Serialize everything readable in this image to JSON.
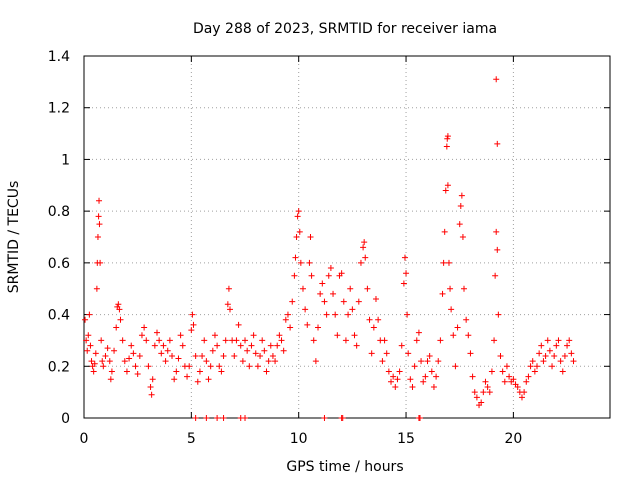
{
  "chart_data": {
    "type": "scatter",
    "title": "Day 288 of 2023, SRMTID for receiver iama",
    "xlabel": "GPS time / hours",
    "ylabel": "SRMTID / TECUs",
    "xlim": [
      0,
      24.5
    ],
    "ylim": [
      0,
      1.4
    ],
    "xticks": [
      0,
      5,
      10,
      15,
      20
    ],
    "xtick_labels": [
      "0",
      "5",
      "10",
      "15",
      "20"
    ],
    "yticks": [
      0,
      0.2,
      0.4,
      0.6,
      0.8,
      1,
      1.2,
      1.4
    ],
    "ytick_labels": [
      "0",
      "0.2",
      "0.4",
      "0.6",
      "0.8",
      "1",
      "1.2",
      "1.4"
    ],
    "grid": true,
    "marker": "+",
    "color": "#ff0000",
    "series": [
      {
        "name": "SRMTID",
        "points": [
          [
            0.05,
            0.38
          ],
          [
            0.1,
            0.3
          ],
          [
            0.15,
            0.26
          ],
          [
            0.2,
            0.32
          ],
          [
            0.25,
            0.4
          ],
          [
            0.3,
            0.28
          ],
          [
            0.35,
            0.22
          ],
          [
            0.4,
            0.2
          ],
          [
            0.45,
            0.18
          ],
          [
            0.5,
            0.21
          ],
          [
            0.55,
            0.25
          ],
          [
            0.6,
            0.5
          ],
          [
            0.62,
            0.6
          ],
          [
            0.65,
            0.7
          ],
          [
            0.68,
            0.78
          ],
          [
            0.7,
            0.84
          ],
          [
            0.72,
            0.75
          ],
          [
            0.75,
            0.6
          ],
          [
            0.8,
            0.3
          ],
          [
            0.85,
            0.22
          ],
          [
            0.9,
            0.2
          ],
          [
            1.0,
            0.24
          ],
          [
            1.1,
            0.27
          ],
          [
            1.2,
            0.22
          ],
          [
            1.25,
            0.15
          ],
          [
            1.3,
            0.18
          ],
          [
            1.4,
            0.26
          ],
          [
            1.5,
            0.35
          ],
          [
            1.55,
            0.43
          ],
          [
            1.6,
            0.44
          ],
          [
            1.65,
            0.42
          ],
          [
            1.7,
            0.38
          ],
          [
            1.8,
            0.3
          ],
          [
            1.9,
            0.22
          ],
          [
            2.0,
            0.18
          ],
          [
            2.1,
            0.23
          ],
          [
            2.2,
            0.28
          ],
          [
            2.3,
            0.25
          ],
          [
            2.4,
            0.2
          ],
          [
            2.5,
            0.17
          ],
          [
            2.6,
            0.24
          ],
          [
            2.7,
            0.32
          ],
          [
            2.8,
            0.35
          ],
          [
            2.9,
            0.3
          ],
          [
            3.0,
            0.2
          ],
          [
            3.1,
            0.12
          ],
          [
            3.15,
            0.09
          ],
          [
            3.2,
            0.15
          ],
          [
            3.3,
            0.28
          ],
          [
            3.4,
            0.33
          ],
          [
            3.5,
            0.3
          ],
          [
            3.6,
            0.25
          ],
          [
            3.7,
            0.28
          ],
          [
            3.8,
            0.22
          ],
          [
            3.9,
            0.26
          ],
          [
            4.0,
            0.3
          ],
          [
            4.1,
            0.24
          ],
          [
            4.2,
            0.15
          ],
          [
            4.3,
            0.18
          ],
          [
            4.4,
            0.23
          ],
          [
            4.5,
            0.32
          ],
          [
            4.6,
            0.28
          ],
          [
            4.7,
            0.2
          ],
          [
            4.8,
            0.16
          ],
          [
            4.9,
            0.2
          ],
          [
            5.0,
            0.34
          ],
          [
            5.05,
            0.4
          ],
          [
            5.1,
            0.36
          ],
          [
            5.2,
            0.24
          ],
          [
            5.3,
            0.14
          ],
          [
            5.4,
            0.18
          ],
          [
            5.5,
            0.24
          ],
          [
            5.6,
            0.3
          ],
          [
            5.7,
            0.22
          ],
          [
            5.8,
            0.15
          ],
          [
            5.9,
            0.2
          ],
          [
            6.0,
            0.26
          ],
          [
            6.1,
            0.32
          ],
          [
            6.2,
            0.28
          ],
          [
            6.3,
            0.2
          ],
          [
            6.4,
            0.18
          ],
          [
            6.5,
            0.24
          ],
          [
            6.6,
            0.3
          ],
          [
            6.7,
            0.44
          ],
          [
            6.75,
            0.5
          ],
          [
            6.8,
            0.42
          ],
          [
            6.9,
            0.3
          ],
          [
            7.0,
            0.24
          ],
          [
            7.1,
            0.3
          ],
          [
            7.2,
            0.36
          ],
          [
            7.3,
            0.28
          ],
          [
            7.4,
            0.22
          ],
          [
            7.5,
            0.3
          ],
          [
            7.6,
            0.26
          ],
          [
            7.7,
            0.2
          ],
          [
            7.8,
            0.28
          ],
          [
            7.9,
            0.32
          ],
          [
            8.0,
            0.25
          ],
          [
            8.1,
            0.2
          ],
          [
            8.2,
            0.24
          ],
          [
            8.3,
            0.3
          ],
          [
            8.4,
            0.26
          ],
          [
            8.5,
            0.18
          ],
          [
            8.6,
            0.22
          ],
          [
            8.7,
            0.28
          ],
          [
            8.8,
            0.24
          ],
          [
            8.9,
            0.22
          ],
          [
            9.0,
            0.28
          ],
          [
            9.1,
            0.32
          ],
          [
            9.2,
            0.3
          ],
          [
            9.3,
            0.26
          ],
          [
            9.4,
            0.38
          ],
          [
            9.5,
            0.4
          ],
          [
            9.6,
            0.35
          ],
          [
            9.7,
            0.45
          ],
          [
            9.8,
            0.55
          ],
          [
            9.85,
            0.62
          ],
          [
            9.9,
            0.7
          ],
          [
            9.95,
            0.78
          ],
          [
            10.0,
            0.8
          ],
          [
            10.05,
            0.72
          ],
          [
            10.1,
            0.6
          ],
          [
            10.2,
            0.5
          ],
          [
            10.3,
            0.42
          ],
          [
            10.4,
            0.36
          ],
          [
            10.5,
            0.6
          ],
          [
            10.55,
            0.7
          ],
          [
            10.6,
            0.55
          ],
          [
            10.7,
            0.3
          ],
          [
            10.8,
            0.22
          ],
          [
            10.9,
            0.35
          ],
          [
            11.0,
            0.48
          ],
          [
            11.1,
            0.52
          ],
          [
            11.2,
            0.45
          ],
          [
            11.3,
            0.4
          ],
          [
            11.4,
            0.55
          ],
          [
            11.5,
            0.58
          ],
          [
            11.6,
            0.48
          ],
          [
            11.7,
            0.4
          ],
          [
            11.8,
            0.32
          ],
          [
            11.9,
            0.55
          ],
          [
            12.0,
            0.56
          ],
          [
            12.1,
            0.45
          ],
          [
            12.2,
            0.3
          ],
          [
            12.3,
            0.4
          ],
          [
            12.4,
            0.5
          ],
          [
            12.5,
            0.42
          ],
          [
            12.6,
            0.32
          ],
          [
            12.7,
            0.28
          ],
          [
            12.8,
            0.45
          ],
          [
            12.9,
            0.6
          ],
          [
            13.0,
            0.66
          ],
          [
            13.05,
            0.68
          ],
          [
            13.1,
            0.62
          ],
          [
            13.2,
            0.5
          ],
          [
            13.3,
            0.38
          ],
          [
            13.4,
            0.25
          ],
          [
            13.5,
            0.35
          ],
          [
            13.6,
            0.46
          ],
          [
            13.7,
            0.38
          ],
          [
            13.8,
            0.3
          ],
          [
            13.9,
            0.22
          ],
          [
            14.0,
            0.3
          ],
          [
            14.1,
            0.25
          ],
          [
            14.2,
            0.18
          ],
          [
            14.3,
            0.14
          ],
          [
            14.4,
            0.16
          ],
          [
            14.5,
            0.12
          ],
          [
            14.6,
            0.15
          ],
          [
            14.7,
            0.18
          ],
          [
            14.8,
            0.28
          ],
          [
            14.9,
            0.52
          ],
          [
            14.95,
            0.62
          ],
          [
            15.0,
            0.56
          ],
          [
            15.05,
            0.4
          ],
          [
            15.1,
            0.25
          ],
          [
            15.2,
            0.15
          ],
          [
            15.3,
            0.12
          ],
          [
            15.4,
            0.2
          ],
          [
            15.5,
            0.3
          ],
          [
            15.6,
            0.33
          ],
          [
            15.7,
            0.22
          ],
          [
            15.8,
            0.14
          ],
          [
            15.9,
            0.16
          ],
          [
            16.0,
            0.22
          ],
          [
            16.1,
            0.24
          ],
          [
            16.2,
            0.18
          ],
          [
            16.3,
            0.12
          ],
          [
            16.4,
            0.16
          ],
          [
            16.5,
            0.22
          ],
          [
            16.6,
            0.3
          ],
          [
            16.7,
            0.48
          ],
          [
            16.75,
            0.6
          ],
          [
            16.8,
            0.72
          ],
          [
            16.85,
            0.88
          ],
          [
            16.9,
            1.05
          ],
          [
            16.92,
            1.08
          ],
          [
            16.95,
            0.9
          ],
          [
            17.0,
            0.6
          ],
          [
            17.05,
            0.5
          ],
          [
            17.1,
            0.42
          ],
          [
            17.2,
            0.32
          ],
          [
            17.3,
            0.2
          ],
          [
            17.4,
            0.35
          ],
          [
            17.5,
            0.75
          ],
          [
            17.55,
            0.82
          ],
          [
            17.6,
            0.86
          ],
          [
            17.65,
            0.7
          ],
          [
            17.7,
            0.5
          ],
          [
            17.8,
            0.38
          ],
          [
            17.9,
            0.32
          ],
          [
            18.0,
            0.25
          ],
          [
            18.1,
            0.16
          ],
          [
            18.2,
            0.1
          ],
          [
            18.3,
            0.08
          ],
          [
            18.4,
            0.05
          ],
          [
            18.5,
            0.06
          ],
          [
            18.6,
            0.1
          ],
          [
            18.7,
            0.14
          ],
          [
            18.8,
            0.12
          ],
          [
            18.9,
            0.1
          ],
          [
            19.0,
            0.18
          ],
          [
            19.1,
            0.3
          ],
          [
            19.15,
            0.55
          ],
          [
            19.2,
            0.72
          ],
          [
            19.25,
            0.65
          ],
          [
            19.3,
            0.4
          ],
          [
            19.4,
            0.24
          ],
          [
            19.5,
            0.18
          ],
          [
            19.6,
            0.14
          ],
          [
            19.7,
            0.2
          ],
          [
            19.8,
            0.16
          ],
          [
            19.9,
            0.14
          ],
          [
            20.0,
            0.15
          ],
          [
            20.1,
            0.13
          ],
          [
            20.2,
            0.12
          ],
          [
            20.3,
            0.1
          ],
          [
            20.4,
            0.08
          ],
          [
            20.5,
            0.1
          ],
          [
            20.6,
            0.14
          ],
          [
            20.7,
            0.16
          ],
          [
            20.8,
            0.2
          ],
          [
            20.9,
            0.22
          ],
          [
            21.0,
            0.18
          ],
          [
            21.1,
            0.2
          ],
          [
            21.2,
            0.25
          ],
          [
            21.3,
            0.28
          ],
          [
            21.4,
            0.22
          ],
          [
            21.5,
            0.24
          ],
          [
            21.6,
            0.3
          ],
          [
            21.7,
            0.26
          ],
          [
            21.8,
            0.2
          ],
          [
            21.9,
            0.24
          ],
          [
            22.0,
            0.28
          ],
          [
            22.1,
            0.3
          ],
          [
            22.2,
            0.22
          ],
          [
            22.3,
            0.18
          ],
          [
            22.4,
            0.24
          ],
          [
            22.5,
            0.28
          ],
          [
            22.6,
            0.3
          ],
          [
            22.7,
            0.25
          ],
          [
            22.8,
            0.22
          ],
          [
            19.2,
            1.31
          ],
          [
            19.25,
            1.06
          ],
          [
            16.95,
            1.09
          ],
          [
            5.2,
            0
          ],
          [
            5.7,
            0
          ],
          [
            6.2,
            0
          ],
          [
            6.5,
            0
          ],
          [
            7.3,
            0
          ],
          [
            7.5,
            0
          ],
          [
            11.2,
            0
          ],
          [
            12.0,
            0
          ],
          [
            12.05,
            0
          ],
          [
            15.6,
            0
          ],
          [
            15.65,
            0
          ]
        ]
      }
    ]
  }
}
